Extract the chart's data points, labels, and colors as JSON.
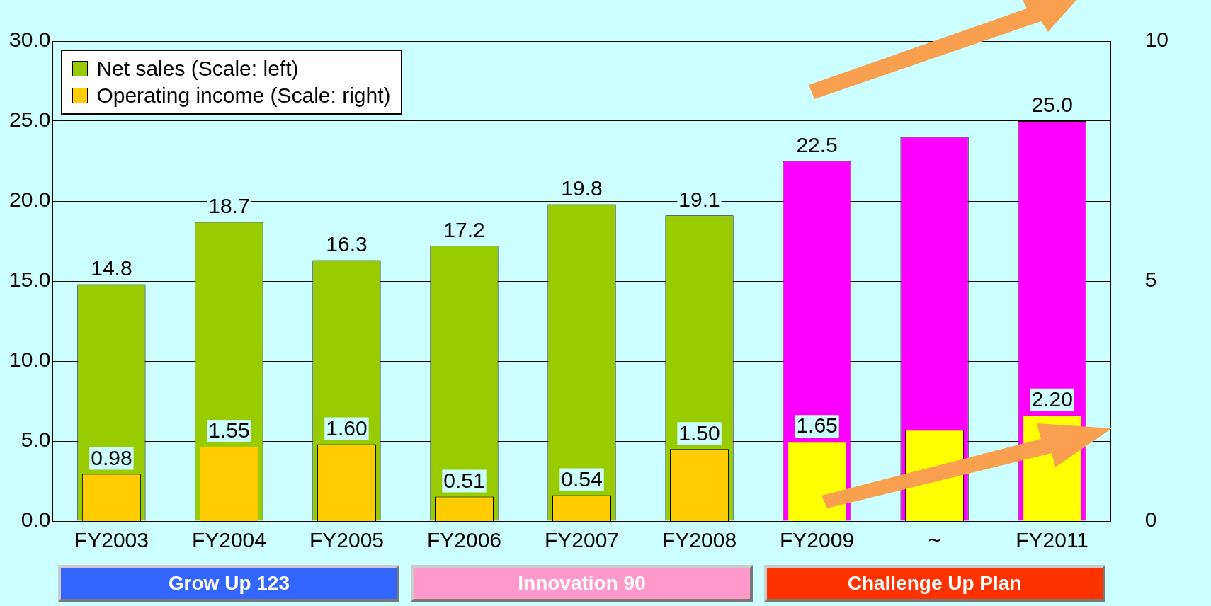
{
  "chart_data": {
    "type": "bar",
    "categories": [
      "FY2003",
      "FY2004",
      "FY2005",
      "FY2006",
      "FY2007",
      "FY2008",
      "FY2009",
      "~",
      "FY2011"
    ],
    "series": [
      {
        "name": "Net sales (Scale: left)",
        "colors": [
          "#99cc00",
          "#99cc00",
          "#99cc00",
          "#99cc00",
          "#99cc00",
          "#99cc00",
          "#ff00ff",
          "#ff00ff",
          "#ff00ff"
        ],
        "values": [
          14.8,
          18.7,
          16.3,
          17.2,
          19.8,
          19.1,
          22.5,
          24.0,
          25.0
        ],
        "value_labels": [
          "14.8",
          "18.7",
          "16.3",
          "17.2",
          "19.8",
          "19.1",
          "22.5",
          null,
          "25.0"
        ]
      },
      {
        "name": "Operating income (Scale: right)",
        "axis": "y2",
        "colors": [
          "#ffcc00",
          "#ffcc00",
          "#ffcc00",
          "#ffcc00",
          "#ffcc00",
          "#ffcc00",
          "#ffff00",
          "#ffff00",
          "#ffff00"
        ],
        "values": [
          0.98,
          1.55,
          1.6,
          0.51,
          0.54,
          1.5,
          1.65,
          1.9,
          2.2
        ],
        "value_labels": [
          "0.98",
          "1.55",
          "1.60",
          "0.51",
          "0.54",
          "1.50",
          "1.65",
          null,
          "2.20"
        ]
      }
    ],
    "ylim": [
      0,
      30
    ],
    "yticks": [
      {
        "value": 0,
        "label": "0.0"
      },
      {
        "value": 5,
        "label": "5.0"
      },
      {
        "value": 10,
        "label": "10.0"
      },
      {
        "value": 15,
        "label": "15.0"
      },
      {
        "value": 20,
        "label": "20.0"
      },
      {
        "value": 25,
        "label": "25.0"
      },
      {
        "value": 30,
        "label": "30.0"
      }
    ],
    "y2lim": [
      0,
      10
    ],
    "y2ticks": [
      0,
      5,
      10
    ],
    "grid": "y",
    "legend": "top left",
    "annotations": [
      "Grow Up 123",
      "Innovation 90",
      "Challenge Up Plan"
    ]
  }
}
